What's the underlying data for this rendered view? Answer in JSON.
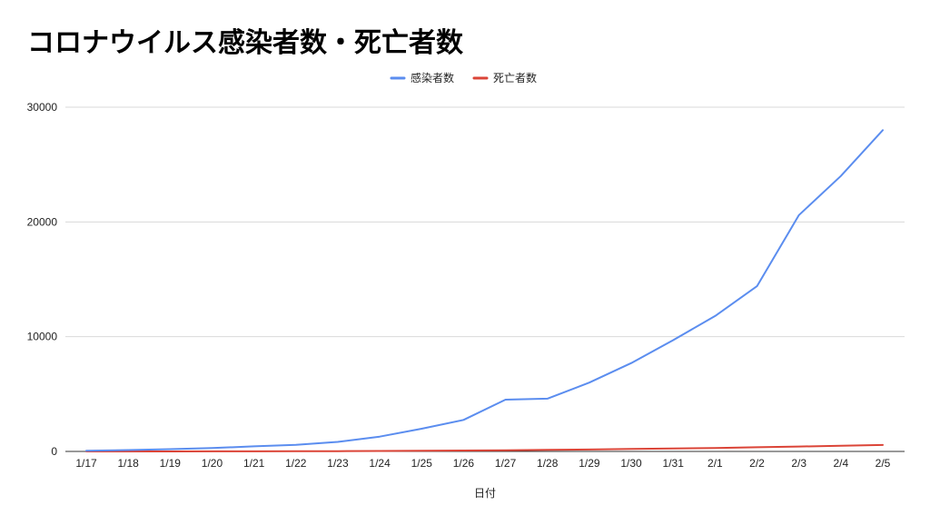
{
  "chart_data": {
    "type": "line",
    "title": "コロナウイルス感染者数・死亡者数",
    "xlabel": "日付",
    "ylabel": "",
    "categories": [
      "1/17",
      "1/18",
      "1/19",
      "1/20",
      "1/21",
      "1/22",
      "1/23",
      "1/24",
      "1/25",
      "1/26",
      "1/27",
      "1/28",
      "1/29",
      "1/30",
      "1/31",
      "2/1",
      "2/2",
      "2/3",
      "2/4",
      "2/5"
    ],
    "series": [
      {
        "name": "感染者数",
        "color": "#5b8def",
        "values": [
          62,
          121,
          198,
          291,
          440,
          571,
          830,
          1287,
          1975,
          2744,
          4515,
          4600,
          6000,
          7700,
          9700,
          11800,
          14400,
          20600,
          24000,
          28000
        ]
      },
      {
        "name": "死亡者数",
        "color": "#db4437",
        "values": [
          2,
          3,
          3,
          6,
          9,
          17,
          25,
          41,
          56,
          80,
          106,
          132,
          170,
          213,
          259,
          304,
          362,
          426,
          492,
          565
        ]
      }
    ],
    "ylim": [
      0,
      30000
    ],
    "yticks": [
      0,
      10000,
      20000,
      30000
    ],
    "grid": true,
    "legend_position": "top-center"
  }
}
